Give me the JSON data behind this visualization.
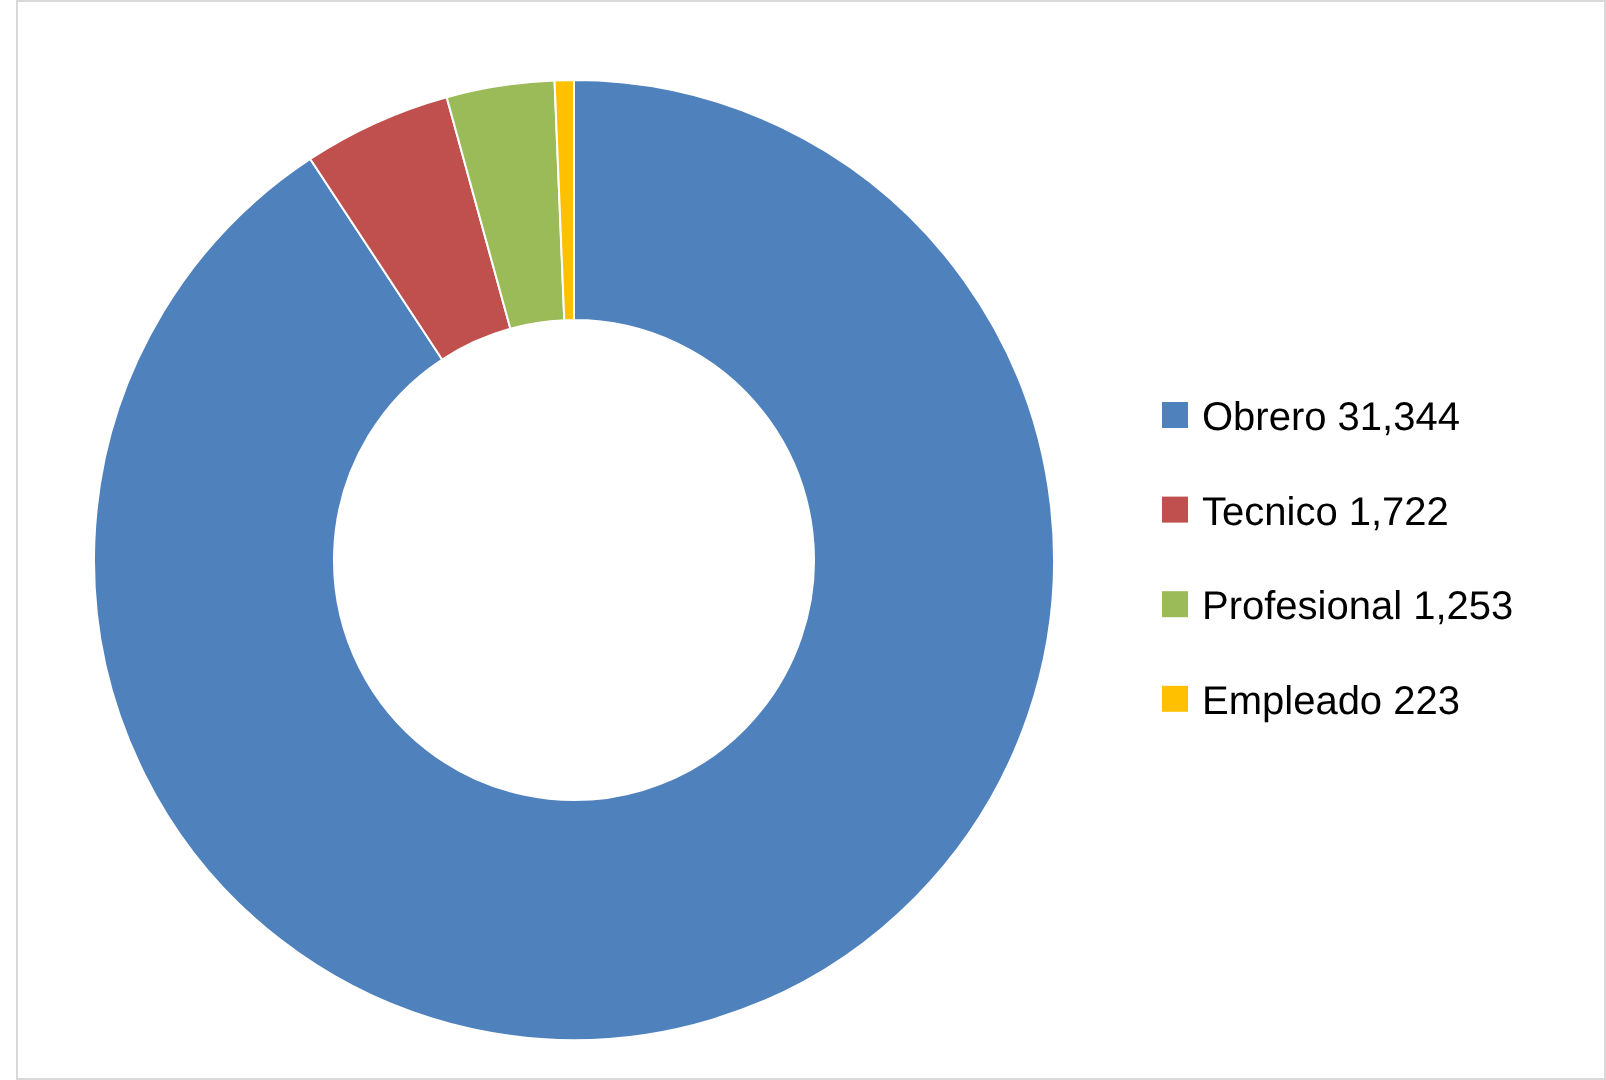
{
  "chart_data": {
    "type": "donut",
    "categories": [
      "Obrero 31,344",
      "Tecnico 1,722",
      "Profesional 1,253",
      "Empleado 223"
    ],
    "values": [
      31344,
      1722,
      1253,
      223
    ],
    "colors": [
      "#4f81bd",
      "#c0504d",
      "#9bbb59",
      "#ffc000"
    ],
    "legend": "right"
  }
}
